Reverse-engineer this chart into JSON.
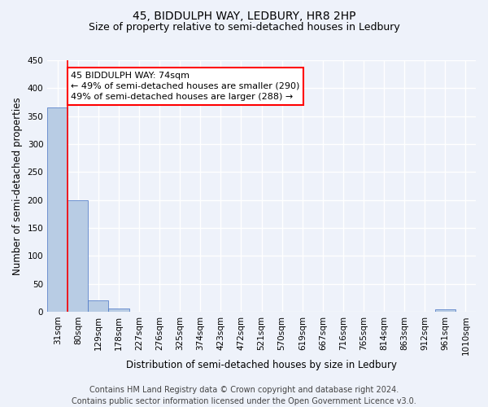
{
  "title": "45, BIDDULPH WAY, LEDBURY, HR8 2HP",
  "subtitle": "Size of property relative to semi-detached houses in Ledbury",
  "xlabel": "Distribution of semi-detached houses by size in Ledbury",
  "ylabel": "Number of semi-detached properties",
  "footer_line1": "Contains HM Land Registry data © Crown copyright and database right 2024.",
  "footer_line2": "Contains public sector information licensed under the Open Government Licence v3.0.",
  "bins": [
    "31sqm",
    "80sqm",
    "129sqm",
    "178sqm",
    "227sqm",
    "276sqm",
    "325sqm",
    "374sqm",
    "423sqm",
    "472sqm",
    "521sqm",
    "570sqm",
    "619sqm",
    "667sqm",
    "716sqm",
    "765sqm",
    "814sqm",
    "863sqm",
    "912sqm",
    "961sqm",
    "1010sqm"
  ],
  "values": [
    365,
    200,
    20,
    6,
    0,
    0,
    0,
    0,
    0,
    0,
    0,
    0,
    0,
    0,
    0,
    0,
    0,
    0,
    0,
    5,
    0
  ],
  "bar_color": "#b8cce4",
  "bar_edge_color": "#4472c4",
  "annotation_line1": "45 BIDDULPH WAY: 74sqm",
  "annotation_line2": "← 49% of semi-detached houses are smaller (290)",
  "annotation_line3": "49% of semi-detached houses are larger (288) →",
  "annotation_box_color": "white",
  "annotation_box_edge_color": "red",
  "vline_color": "red",
  "vline_x": 0.5,
  "ylim": [
    0,
    450
  ],
  "yticks": [
    0,
    50,
    100,
    150,
    200,
    250,
    300,
    350,
    400,
    450
  ],
  "background_color": "#eef2fa",
  "grid_color": "white",
  "title_fontsize": 10,
  "subtitle_fontsize": 9,
  "axis_label_fontsize": 8.5,
  "tick_fontsize": 7.5,
  "footer_fontsize": 7,
  "annotation_fontsize": 8
}
